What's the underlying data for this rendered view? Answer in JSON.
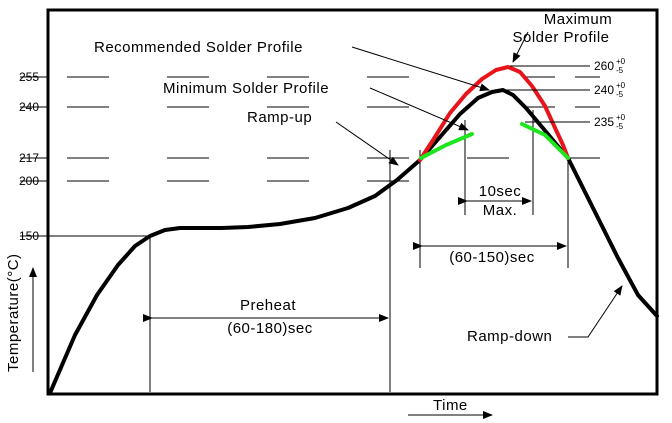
{
  "diagram": {
    "axes": {
      "y_label": "Temperature(°C)",
      "x_label": "Time"
    },
    "temperature_ticks": [
      "255",
      "240",
      "217",
      "200",
      "150"
    ],
    "peak_labels": {
      "t260": "260",
      "t240": "240",
      "t235": "235",
      "tol_plus": "+0",
      "tol_minus": "-5"
    },
    "callouts": {
      "maximum_line1": "Maximum",
      "maximum_line2": "Solder Profile",
      "recommended": "Recommended Solder Profile",
      "minimum": "Minimum Solder Profile",
      "ramp_up": "Ramp-up",
      "ramp_down": "Ramp-down"
    },
    "intervals": {
      "preheat_label": "Preheat",
      "preheat_range": "(60-180)sec",
      "reflow_range": "(60-150)sec",
      "peak_line1": "10sec",
      "peak_line2": "Max."
    },
    "colors": {
      "recommended": "#000000",
      "maximum": "#e8141b",
      "minimum": "#1ee61e"
    }
  }
}
